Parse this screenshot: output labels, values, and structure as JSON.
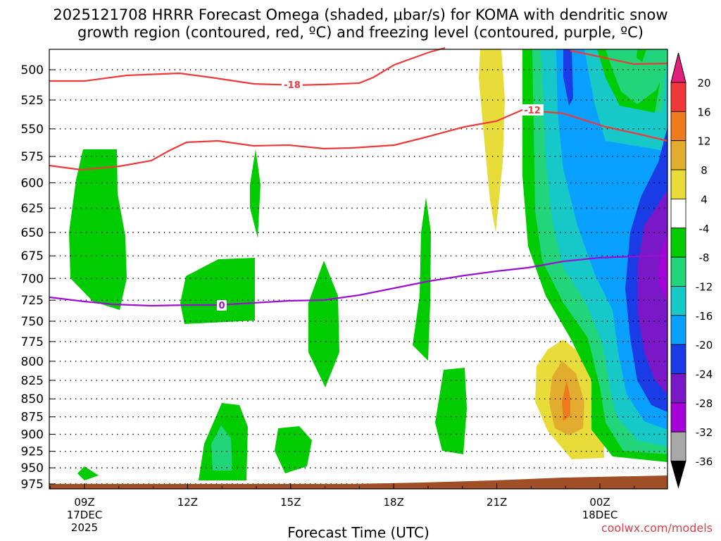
{
  "chart_data": {
    "type": "contour",
    "title_line1": "2025121708 HRRR Forecast Omega (shaded, μbar/s) for KOMA with dendritic snow",
    "title_line2": "growth region (contoured, red, ºC) and freezing level (contoured, purple, ºC)",
    "xlabel": "Forecast Time (UTC)",
    "credit": "coolwx.com/models",
    "y_ticks": [
      "500",
      "525",
      "550",
      "575",
      "600",
      "625",
      "650",
      "675",
      "700",
      "725",
      "750",
      "775",
      "800",
      "825",
      "850",
      "875",
      "900",
      "925",
      "950",
      "975"
    ],
    "x_ticks": [
      {
        "hour": 9,
        "label": "09Z",
        "sub1": "17DEC",
        "sub2": "2025"
      },
      {
        "hour": 12,
        "label": "12Z",
        "sub1": "",
        "sub2": ""
      },
      {
        "hour": 15,
        "label": "15Z",
        "sub1": "",
        "sub2": ""
      },
      {
        "hour": 18,
        "label": "18Z",
        "sub1": "",
        "sub2": ""
      },
      {
        "hour": 21,
        "label": "21Z",
        "sub1": "",
        "sub2": ""
      },
      {
        "hour": 24,
        "label": "00Z",
        "sub1": "18DEC",
        "sub2": ""
      }
    ],
    "x_range_hours": [
      8.0,
      26.0
    ],
    "y_range_hpa": [
      470,
      985
    ],
    "colorbar_labels": [
      "20",
      "16",
      "12",
      "8",
      "4",
      "-4",
      "-8",
      "-12",
      "-16",
      "-20",
      "-24",
      "-28",
      "-32",
      "-36"
    ],
    "colorbar_colors": {
      "above_20": "#e0207a",
      "16_20": "#f03a3a",
      "12_16": "#ee7a1e",
      "8_12": "#e2ad2e",
      "4_8": "#e8dc3a",
      "m4_4": "#ffffff",
      "m8_m4": "#00cc00",
      "m12_m8": "#22d47a",
      "m16_m12": "#16c8c8",
      "m20_m16": "#0aa0ff",
      "m24_m20": "#1a3ce6",
      "m28_m24": "#7a18c8",
      "m32_m28": "#a800d8",
      "m36_m32": "#a8a8a8",
      "below_m36": "#000000"
    },
    "contour_labels": {
      "dgz_upper": "-18",
      "dgz_lower": "-12",
      "freezing": "0"
    },
    "contour_colors": {
      "dgz": "#ee3a3a",
      "freezing": "#9910d0",
      "terrain": "#a04e26"
    }
  }
}
